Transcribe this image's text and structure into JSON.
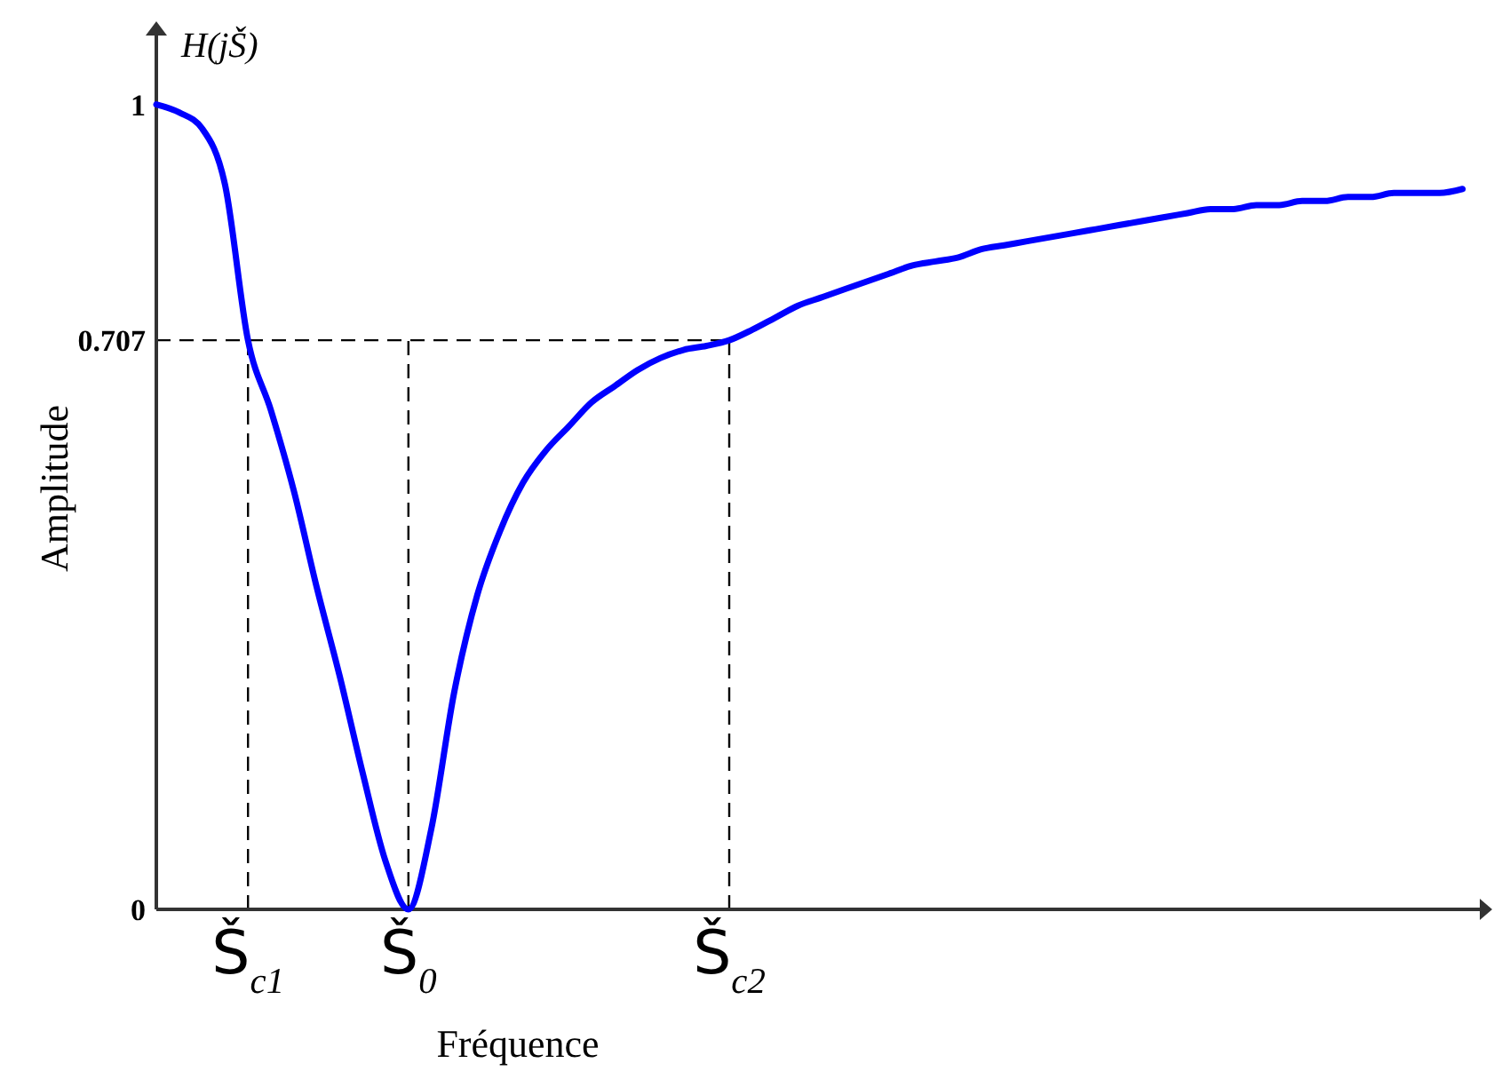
{
  "chart_data": {
    "type": "line",
    "title": "H(jŠ)",
    "xlabel": "Fréquence",
    "ylabel": "Amplitude",
    "categories": [
      null,
      null,
      null,
      null,
      "Š$_{c1}$",
      null,
      null,
      null,
      null,
      null,
      null,
      "Š$_{0}$",
      null,
      null,
      null,
      null,
      null,
      null,
      null,
      null,
      null,
      null,
      null,
      null,
      null,
      "Š$_{c2}$",
      null,
      null,
      null,
      null,
      null,
      null,
      null,
      null,
      null,
      null,
      null,
      null,
      null,
      null,
      null,
      null,
      null,
      null,
      null,
      null,
      null,
      null,
      null,
      null,
      null,
      null,
      null,
      null,
      null,
      null,
      null,
      null
    ],
    "series": [
      {
        "color": "#0000ff",
        "values": [
          1,
          0.99,
          0.97,
          0.9,
          0.707,
          0.62,
          0.52,
          0.4,
          0.29,
          0.17,
          0.06,
          0,
          0.1,
          0.27,
          0.39,
          0.47,
          0.53,
          0.57,
          0.6,
          0.63,
          0.65,
          0.67,
          0.685,
          0.695,
          0.7,
          0.707,
          0.72,
          0.735,
          0.75,
          0.76,
          0.77,
          0.78,
          0.79,
          0.8,
          0.805,
          0.81,
          0.82,
          0.825,
          0.83,
          0.835,
          0.84,
          0.845,
          0.85,
          0.855,
          0.86,
          0.865,
          0.87,
          0.87,
          0.875,
          0.875,
          0.88,
          0.88,
          0.885,
          0.885,
          0.89,
          0.89,
          0.89,
          0.895
        ]
      }
    ],
    "ylim": [
      0,
      1.09
    ],
    "yticks": [
      {
        "value": 0,
        "label": "0"
      },
      {
        "value": 0.707,
        "label": "0.707"
      },
      {
        "value": 1,
        "label": "1"
      }
    ],
    "ref_lines": [
      {
        "axis": "y",
        "value": 0.707,
        "line_style": "dashed",
        "color": "#000000"
      },
      {
        "axis": "x",
        "value": "Š$_{c1}$",
        "line_style": "dashed",
        "color": "#000000"
      },
      {
        "axis": "x",
        "value": "Š$_{0}$",
        "line_style": "dashed",
        "color": "#000000"
      },
      {
        "axis": "x",
        "value": "Š$_{c2}$",
        "line_style": "dashed",
        "color": "#000000"
      }
    ],
    "grid": false,
    "line_style": "solid",
    "marker": "none"
  }
}
